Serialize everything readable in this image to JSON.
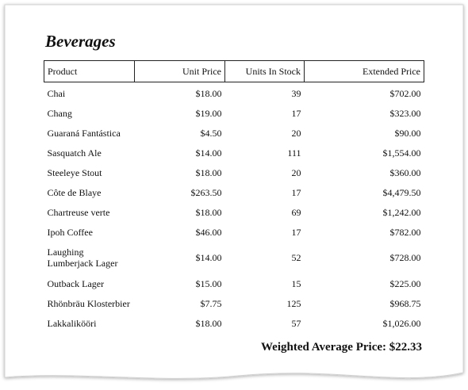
{
  "report": {
    "title": "Beverages",
    "columns": [
      "Product",
      "Unit Price",
      "Units In Stock",
      "Extended Price"
    ],
    "rows": [
      {
        "product": "Chai",
        "unit_price": "$18.00",
        "units_in_stock": "39",
        "extended_price": "$702.00"
      },
      {
        "product": "Chang",
        "unit_price": "$19.00",
        "units_in_stock": "17",
        "extended_price": "$323.00"
      },
      {
        "product": "Guaraná Fantástica",
        "unit_price": "$4.50",
        "units_in_stock": "20",
        "extended_price": "$90.00"
      },
      {
        "product": "Sasquatch Ale",
        "unit_price": "$14.00",
        "units_in_stock": "111",
        "extended_price": "$1,554.00"
      },
      {
        "product": "Steeleye Stout",
        "unit_price": "$18.00",
        "units_in_stock": "20",
        "extended_price": "$360.00"
      },
      {
        "product": "Côte de Blaye",
        "unit_price": "$263.50",
        "units_in_stock": "17",
        "extended_price": "$4,479.50"
      },
      {
        "product": "Chartreuse verte",
        "unit_price": "$18.00",
        "units_in_stock": "69",
        "extended_price": "$1,242.00"
      },
      {
        "product": "Ipoh Coffee",
        "unit_price": "$46.00",
        "units_in_stock": "17",
        "extended_price": "$782.00"
      },
      {
        "product": "Laughing Lumberjack Lager",
        "unit_price": "$14.00",
        "units_in_stock": "52",
        "extended_price": "$728.00"
      },
      {
        "product": "Outback Lager",
        "unit_price": "$15.00",
        "units_in_stock": "15",
        "extended_price": "$225.00"
      },
      {
        "product": "Rhönbräu Klosterbier",
        "unit_price": "$7.75",
        "units_in_stock": "125",
        "extended_price": "$968.75"
      },
      {
        "product": "Lakkalikööri",
        "unit_price": "$18.00",
        "units_in_stock": "57",
        "extended_price": "$1,026.00"
      }
    ],
    "summary": "Weighted Average Price: $22.33"
  }
}
